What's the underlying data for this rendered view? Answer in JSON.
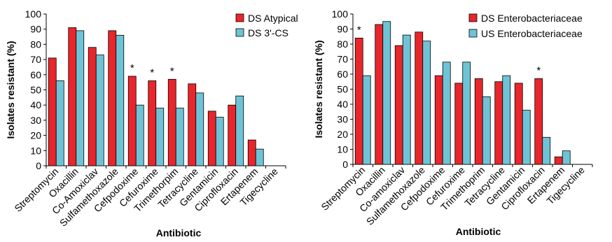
{
  "chart_data": [
    {
      "type": "bar",
      "categories": [
        "Streptomycin",
        "Oxacillin",
        "Co-Amoxiclav",
        "Sulfamethoxazole",
        "Cefpodoxime",
        "Cefuroxime",
        "Trimethorpim",
        "Tetracycline",
        "Gentamicin",
        "Ciprofloxacin",
        "Ertapenem",
        "Tigecycline"
      ],
      "series": [
        {
          "name": "DS Atypical",
          "color": "#e8262b",
          "values": [
            71,
            91,
            78,
            89,
            59,
            56,
            57,
            54,
            36,
            40,
            17,
            0
          ]
        },
        {
          "name": "DS 3'-CS",
          "color": "#6fc3d6",
          "values": [
            56,
            89,
            73,
            86,
            40,
            38,
            38,
            48,
            32,
            46,
            11,
            0
          ]
        }
      ],
      "xlabel": "Antibiotic",
      "ylabel": "Isolates resistant (%)",
      "ylim": [
        0,
        100
      ],
      "yticks": [
        0,
        10,
        20,
        30,
        40,
        50,
        60,
        70,
        80,
        90,
        100
      ],
      "annotations": [
        {
          "category": "Cefpodoxime",
          "text": "*"
        },
        {
          "category": "Cefuroxime",
          "text": "*"
        },
        {
          "category": "Trimethorpim",
          "text": "*"
        }
      ],
      "legend": "top-right",
      "grid": false
    },
    {
      "type": "bar",
      "categories": [
        "Streptomycin",
        "Oxacillin",
        "Co-amoxiclav",
        "Sulfamethoxazole",
        "Cefpodoxime",
        "Cefuroxime",
        "Trimethoprim",
        "Tetracycline",
        "Gentamicin",
        "Ciprofloxacin",
        "Ertapenem",
        "Tigecycline"
      ],
      "series": [
        {
          "name": "DS Enterobacteriaceae",
          "color": "#e8262b",
          "values": [
            84,
            93,
            79,
            88,
            59,
            54,
            57,
            55,
            54,
            57,
            5,
            0
          ]
        },
        {
          "name": "US Enterobacteriaceae",
          "color": "#6fc3d6",
          "values": [
            59,
            95,
            86,
            82,
            68,
            68,
            45,
            59,
            36,
            18,
            9,
            0
          ]
        }
      ],
      "xlabel": "Antibiotic",
      "ylabel": "Isolates resistant (%)",
      "ylim": [
        0,
        100
      ],
      "yticks": [
        0,
        10,
        20,
        30,
        40,
        50,
        60,
        70,
        80,
        90,
        100
      ],
      "annotations": [
        {
          "category": "Streptomycin",
          "text": "*"
        },
        {
          "category": "Ciprofloxacin",
          "text": "*"
        }
      ],
      "legend": "top-right",
      "grid": false
    }
  ]
}
